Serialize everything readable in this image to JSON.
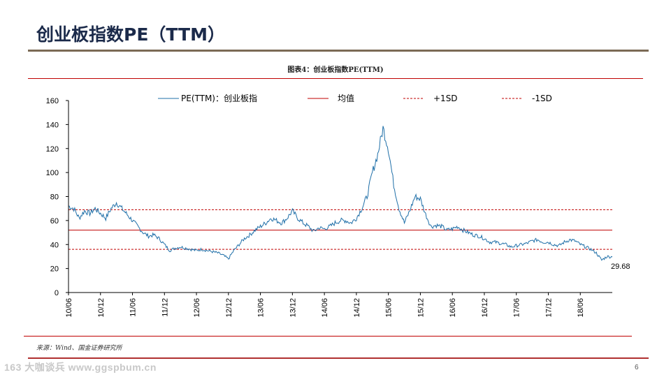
{
  "slide": {
    "title": "创业板指数PE（TTM）",
    "page_number": "6",
    "watermark": "163 大咖谈兵 www.ggspbum.cn"
  },
  "figure": {
    "title": "图表4：创业板指数PE(TTM)",
    "source": "来源：Wind、国金证券研究所"
  },
  "colors": {
    "series": "#1f6fa8",
    "mean": "#c00000",
    "band": "#c00000",
    "axis": "#000000",
    "title": "#1b2a4a"
  },
  "chart_data": {
    "type": "line",
    "ylim": [
      0,
      160
    ],
    "yticks": [
      0,
      20,
      40,
      60,
      80,
      100,
      120,
      140,
      160
    ],
    "xticks": [
      "10/06",
      "10/12",
      "11/06",
      "11/12",
      "12/06",
      "12/12",
      "13/06",
      "13/12",
      "14/06",
      "14/12",
      "15/06",
      "15/12",
      "16/06",
      "16/12",
      "17/06",
      "17/12",
      "18/06"
    ],
    "x_range": [
      "2010-06",
      "2018-12"
    ],
    "grid": false,
    "legend_position": "top",
    "last_value_label": "29.68",
    "series": [
      {
        "name": "PE(TTM)：创业板指",
        "style": "solid",
        "points": [
          [
            "2010-06",
            72
          ],
          [
            "2010-07",
            70
          ],
          [
            "2010-08",
            62
          ],
          [
            "2010-09",
            68
          ],
          [
            "2010-10",
            66
          ],
          [
            "2010-11",
            70
          ],
          [
            "2010-12",
            66
          ],
          [
            "2011-01",
            62
          ],
          [
            "2011-02",
            70
          ],
          [
            "2011-03",
            75
          ],
          [
            "2011-04",
            70
          ],
          [
            "2011-05",
            65
          ],
          [
            "2011-06",
            60
          ],
          [
            "2011-07",
            55
          ],
          [
            "2011-08",
            50
          ],
          [
            "2011-09",
            47
          ],
          [
            "2011-10",
            48
          ],
          [
            "2011-11",
            45
          ],
          [
            "2011-12",
            40
          ],
          [
            "2012-01",
            35
          ],
          [
            "2012-02",
            37
          ],
          [
            "2012-03",
            38
          ],
          [
            "2012-04",
            37
          ],
          [
            "2012-05",
            36
          ],
          [
            "2012-06",
            35
          ],
          [
            "2012-07",
            36
          ],
          [
            "2012-08",
            35
          ],
          [
            "2012-09",
            34
          ],
          [
            "2012-10",
            33
          ],
          [
            "2012-11",
            31
          ],
          [
            "2012-12",
            28
          ],
          [
            "2013-01",
            35
          ],
          [
            "2013-02",
            40
          ],
          [
            "2013-03",
            45
          ],
          [
            "2013-04",
            48
          ],
          [
            "2013-05",
            52
          ],
          [
            "2013-06",
            55
          ],
          [
            "2013-07",
            58
          ],
          [
            "2013-08",
            62
          ],
          [
            "2013-09",
            60
          ],
          [
            "2013-10",
            58
          ],
          [
            "2013-11",
            62
          ],
          [
            "2013-12",
            68
          ],
          [
            "2014-01",
            62
          ],
          [
            "2014-02",
            58
          ],
          [
            "2014-03",
            55
          ],
          [
            "2014-04",
            51
          ],
          [
            "2014-05",
            54
          ],
          [
            "2014-06",
            53
          ],
          [
            "2014-07",
            55
          ],
          [
            "2014-08",
            58
          ],
          [
            "2014-09",
            60
          ],
          [
            "2014-10",
            60
          ],
          [
            "2014-11",
            58
          ],
          [
            "2014-12",
            62
          ],
          [
            "2015-01",
            70
          ],
          [
            "2015-02",
            80
          ],
          [
            "2015-03",
            100
          ],
          [
            "2015-04",
            115
          ],
          [
            "2015-05",
            137
          ],
          [
            "2015-06",
            120
          ],
          [
            "2015-07",
            90
          ],
          [
            "2015-08",
            70
          ],
          [
            "2015-09",
            58
          ],
          [
            "2015-10",
            68
          ],
          [
            "2015-11",
            80
          ],
          [
            "2015-12",
            78
          ],
          [
            "2016-01",
            65
          ],
          [
            "2016-02",
            55
          ],
          [
            "2016-03",
            56
          ],
          [
            "2016-04",
            55
          ],
          [
            "2016-05",
            52
          ],
          [
            "2016-06",
            53
          ],
          [
            "2016-07",
            55
          ],
          [
            "2016-08",
            52
          ],
          [
            "2016-09",
            50
          ],
          [
            "2016-10",
            48
          ],
          [
            "2016-11",
            47
          ],
          [
            "2016-12",
            45
          ],
          [
            "2017-01",
            42
          ],
          [
            "2017-02",
            42
          ],
          [
            "2017-03",
            41
          ],
          [
            "2017-04",
            40
          ],
          [
            "2017-05",
            38
          ],
          [
            "2017-06",
            39
          ],
          [
            "2017-07",
            40
          ],
          [
            "2017-08",
            41
          ],
          [
            "2017-09",
            43
          ],
          [
            "2017-10",
            44
          ],
          [
            "2017-11",
            42
          ],
          [
            "2017-12",
            42
          ],
          [
            "2018-01",
            40
          ],
          [
            "2018-02",
            39
          ],
          [
            "2018-03",
            42
          ],
          [
            "2018-04",
            44
          ],
          [
            "2018-05",
            43
          ],
          [
            "2018-06",
            40
          ],
          [
            "2018-07",
            38
          ],
          [
            "2018-08",
            36
          ],
          [
            "2018-09",
            33
          ],
          [
            "2018-10",
            27
          ],
          [
            "2018-11",
            30
          ],
          [
            "2018-12",
            29.68
          ]
        ]
      },
      {
        "name": "均值",
        "style": "solid",
        "value": 52
      },
      {
        "name": "+1SD",
        "style": "dashed",
        "value": 69
      },
      {
        "name": "-1SD",
        "style": "dashed",
        "value": 36
      }
    ]
  }
}
